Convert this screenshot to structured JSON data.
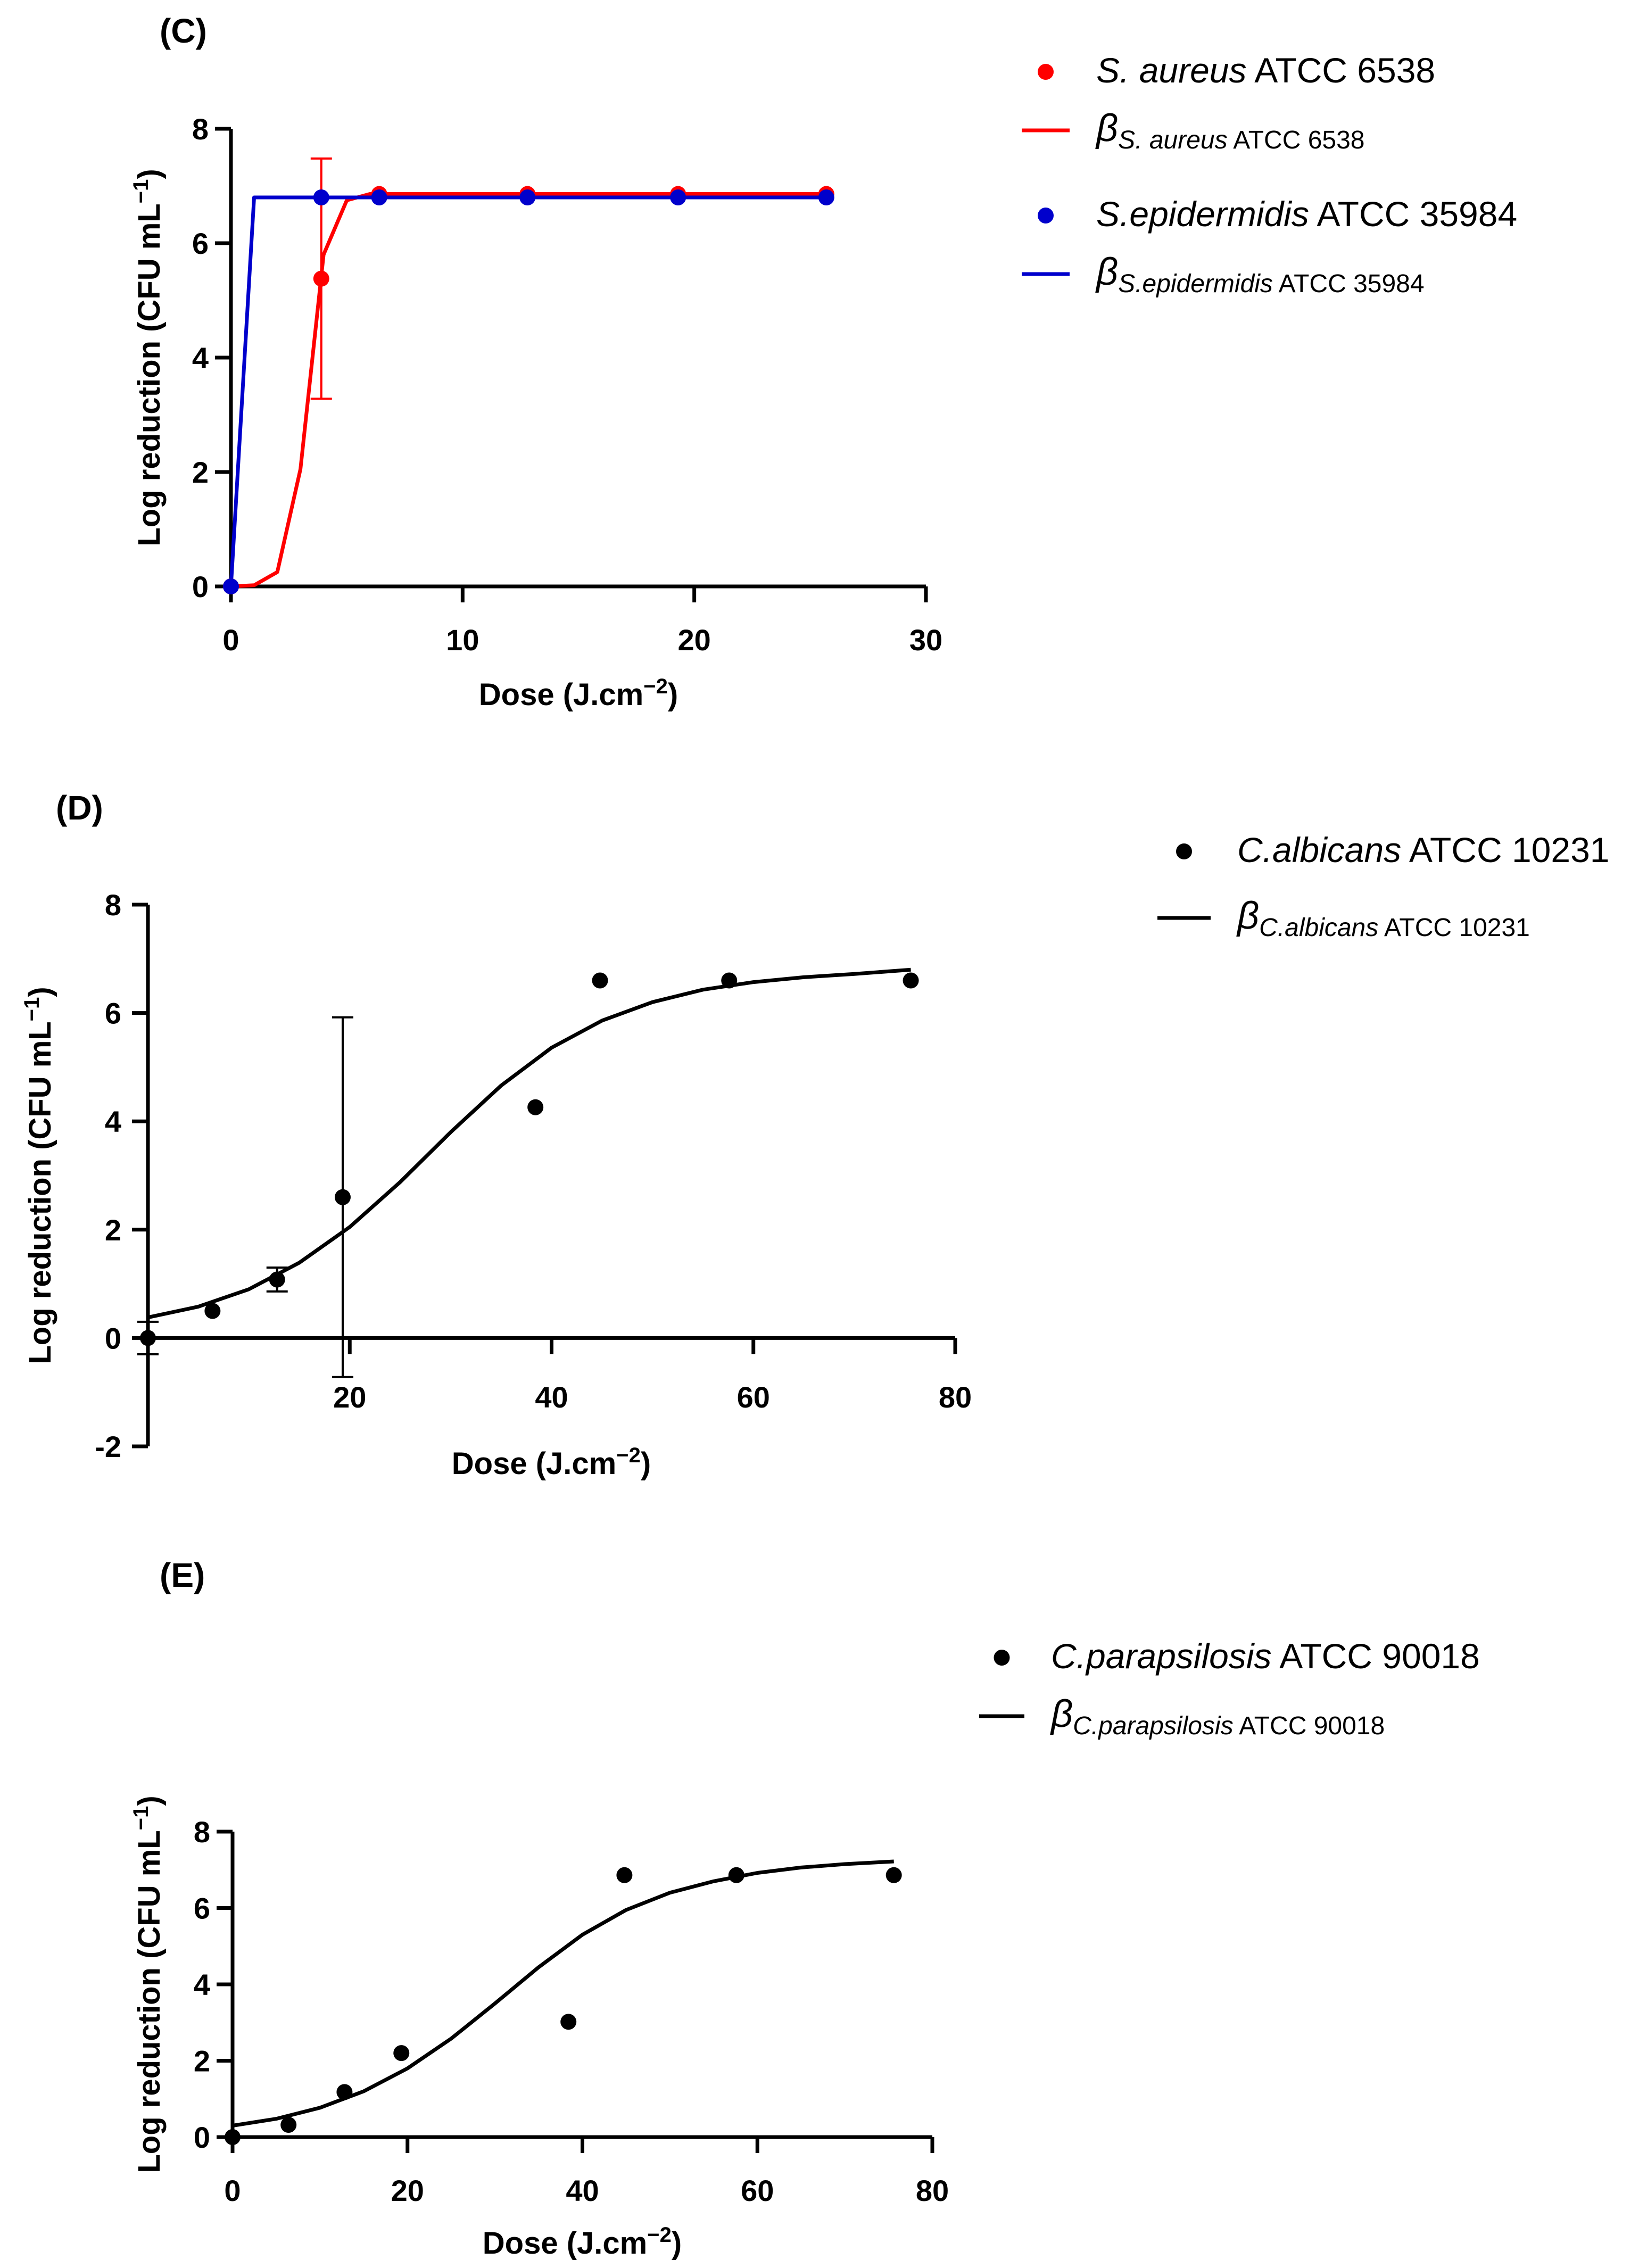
{
  "chart_data": [
    {
      "panel": "(C)",
      "type": "scatter",
      "xlabel": "Dose (J.cm⁻²)",
      "ylabel": "Log reduction (CFU mL⁻¹)",
      "xlim": [
        0,
        30
      ],
      "ylim": [
        0,
        8
      ],
      "xticks": [
        "0",
        "10",
        "20",
        "30"
      ],
      "yticks": [
        "0",
        "2",
        "4",
        "6",
        "8"
      ],
      "legend_position": "top-right",
      "series": [
        {
          "name": "S. aureus ATCC 6538",
          "name_italic": "S. aureus",
          "name_plain": " ATCC 6538",
          "kind": "points",
          "color": "#ff0000",
          "x": [
            0,
            3.9,
            6.4,
            12.8,
            19.3,
            25.7
          ],
          "y": [
            0,
            5.38,
            6.86,
            6.86,
            6.86,
            6.86
          ],
          "error": [
            0,
            2.1,
            0,
            0,
            0,
            0
          ]
        },
        {
          "name": "βS. aureus ATCC 6538",
          "name_symbol": "β",
          "name_italic": "S. aureus",
          "name_plain": " ATCC 6538",
          "kind": "line",
          "color": "#ff0000",
          "x": [
            0,
            1,
            2,
            3,
            4,
            5,
            6,
            7,
            8,
            10,
            15,
            20,
            25.7
          ],
          "y": [
            0,
            0.02,
            0.25,
            2.05,
            5.8,
            6.75,
            6.86,
            6.86,
            6.86,
            6.86,
            6.86,
            6.86,
            6.86
          ]
        },
        {
          "name": "S.epidermidis ATCC 35984",
          "name_italic": "S.epidermidis",
          "name_plain": " ATCC 35984",
          "kind": "points",
          "color": "#0000cc",
          "x": [
            0,
            3.9,
            6.4,
            12.8,
            19.3,
            25.7
          ],
          "y": [
            0,
            6.8,
            6.8,
            6.8,
            6.8,
            6.8
          ],
          "error": [
            0,
            0,
            0,
            0,
            0,
            0
          ]
        },
        {
          "name": "βS.epidermidis ATCC 35984",
          "name_symbol": "β",
          "name_italic": "S.epidermidis",
          "name_plain": " ATCC 35984",
          "kind": "line",
          "color": "#0000cc",
          "x": [
            0,
            1,
            3.9,
            10,
            20,
            25.7
          ],
          "y": [
            0,
            6.8,
            6.8,
            6.8,
            6.8,
            6.8
          ]
        }
      ]
    },
    {
      "panel": "(D)",
      "type": "scatter",
      "xlabel": "Dose (J.cm⁻²)",
      "ylabel": "Log reduction (CFU mL⁻¹)",
      "xlim": [
        0,
        80
      ],
      "ylim": [
        -2,
        8
      ],
      "xticks": [
        "20",
        "40",
        "60",
        "80"
      ],
      "yticks": [
        "-2",
        "0",
        "2",
        "4",
        "6",
        "8"
      ],
      "legend_position": "top-right",
      "series": [
        {
          "name": "C.albicans ATCC 10231",
          "name_italic": "C.albicans",
          "name_plain": " ATCC 10231",
          "kind": "points",
          "color": "#000000",
          "x": [
            0,
            6.4,
            12.8,
            19.3,
            38.4,
            44.8,
            57.6,
            75.6
          ],
          "y": [
            0,
            0.5,
            1.08,
            2.6,
            4.26,
            6.6,
            6.6,
            6.6
          ],
          "error": [
            0.3,
            0,
            0.22,
            3.32,
            0,
            0,
            0,
            0
          ]
        },
        {
          "name": "βC.albicans ATCC 10231",
          "name_symbol": "β",
          "name_italic": "C.albicans",
          "name_plain": " ATCC 10231",
          "kind": "line",
          "color": "#000000",
          "x": [
            0,
            5,
            10,
            15,
            20,
            25,
            30,
            35,
            40,
            45,
            50,
            55,
            60,
            65,
            70,
            75.6
          ],
          "y": [
            0.38,
            0.58,
            0.9,
            1.39,
            2.05,
            2.88,
            3.8,
            4.66,
            5.36,
            5.86,
            6.2,
            6.43,
            6.57,
            6.66,
            6.72,
            6.8
          ]
        }
      ]
    },
    {
      "panel": "(E)",
      "type": "scatter",
      "xlabel": "Dose (J.cm⁻²)",
      "ylabel": "Log reduction (CFU mL⁻¹)",
      "xlim": [
        0,
        80
      ],
      "ylim": [
        0,
        8
      ],
      "xticks": [
        "0",
        "20",
        "40",
        "60",
        "80"
      ],
      "yticks": [
        "0",
        "2",
        "4",
        "6",
        "8"
      ],
      "legend_position": "top-right",
      "series": [
        {
          "name": "C.parapsilosis ATCC 90018",
          "name_italic": "C.parapsilosis",
          "name_plain": " ATCC 90018",
          "kind": "points",
          "color": "#000000",
          "x": [
            0,
            6.4,
            12.8,
            19.3,
            38.4,
            44.8,
            57.6,
            75.6
          ],
          "y": [
            0,
            0.32,
            1.18,
            2.2,
            3.02,
            6.86,
            6.86,
            6.86
          ],
          "error": [
            0,
            0,
            0,
            0,
            0,
            0,
            0,
            0
          ]
        },
        {
          "name": "βC.parapsilosis ATCC 90018",
          "name_symbol": "β",
          "name_italic": "C.parapsilosis",
          "name_plain": " ATCC 90018",
          "kind": "line",
          "color": "#000000",
          "x": [
            0,
            5,
            10,
            15,
            20,
            25,
            30,
            35,
            40,
            45,
            50,
            55,
            60,
            65,
            70,
            75.6
          ],
          "y": [
            0.3,
            0.48,
            0.77,
            1.2,
            1.8,
            2.58,
            3.5,
            4.45,
            5.3,
            5.95,
            6.4,
            6.7,
            6.92,
            7.06,
            7.15,
            7.22
          ]
        }
      ]
    }
  ]
}
